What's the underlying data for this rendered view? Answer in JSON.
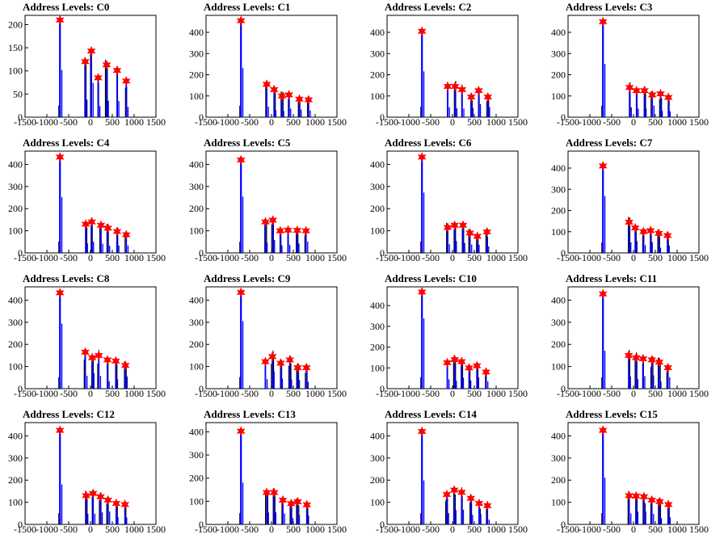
{
  "xlim": [
    -1500,
    1500
  ],
  "x_ticks": [
    -1500,
    -1000,
    -500,
    0,
    500,
    1000,
    1500
  ],
  "colors": {
    "hist": "#0000ff",
    "spike": "#000000",
    "marker": "#ff0000"
  },
  "chart_data": [
    {
      "type": "histogram",
      "title": "Address Levels: C0",
      "ylim": [
        0,
        220
      ],
      "y_ticks": [
        0,
        50,
        100,
        150,
        200
      ],
      "peaks": [
        [
          -700,
          210
        ],
        [
          -120,
          120
        ],
        [
          20,
          143
        ],
        [
          175,
          85
        ],
        [
          370,
          113
        ],
        [
          610,
          101
        ],
        [
          820,
          78
        ]
      ]
    },
    {
      "type": "histogram",
      "title": "Address Levels: C1",
      "ylim": [
        0,
        480
      ],
      "y_ticks": [
        0,
        100,
        200,
        300,
        400
      ],
      "peaks": [
        [
          -700,
          455
        ],
        [
          -110,
          155
        ],
        [
          60,
          130
        ],
        [
          240,
          100
        ],
        [
          400,
          105
        ],
        [
          640,
          85
        ],
        [
          850,
          82
        ]
      ]
    },
    {
      "type": "histogram",
      "title": "Address Levels: C2",
      "ylim": [
        0,
        480
      ],
      "y_ticks": [
        0,
        100,
        200,
        300,
        400
      ],
      "peaks": [
        [
          -700,
          405
        ],
        [
          -110,
          145
        ],
        [
          60,
          145
        ],
        [
          220,
          130
        ],
        [
          430,
          95
        ],
        [
          600,
          125
        ],
        [
          810,
          95
        ]
      ]
    },
    {
      "type": "histogram",
      "title": "Address Levels: C3",
      "ylim": [
        0,
        480
      ],
      "y_ticks": [
        0,
        100,
        200,
        300,
        400
      ],
      "peaks": [
        [
          -700,
          450
        ],
        [
          -90,
          140
        ],
        [
          70,
          125
        ],
        [
          250,
          125
        ],
        [
          430,
          105
        ],
        [
          620,
          110
        ],
        [
          800,
          93
        ]
      ]
    },
    {
      "type": "histogram",
      "title": "Address Levels: C4",
      "ylim": [
        0,
        460
      ],
      "y_ticks": [
        0,
        100,
        200,
        300,
        400
      ],
      "peaks": [
        [
          -700,
          433
        ],
        [
          -110,
          130
        ],
        [
          30,
          140
        ],
        [
          240,
          125
        ],
        [
          400,
          112
        ],
        [
          610,
          97
        ],
        [
          820,
          82
        ]
      ]
    },
    {
      "type": "histogram",
      "title": "Address Levels: C5",
      "ylim": [
        0,
        460
      ],
      "y_ticks": [
        0,
        100,
        200,
        300,
        400
      ],
      "peaks": [
        [
          -700,
          420
        ],
        [
          -140,
          140
        ],
        [
          30,
          148
        ],
        [
          200,
          100
        ],
        [
          380,
          103
        ],
        [
          590,
          102
        ],
        [
          790,
          100
        ]
      ]
    },
    {
      "type": "histogram",
      "title": "Address Levels: C6",
      "ylim": [
        0,
        460
      ],
      "y_ticks": [
        0,
        100,
        200,
        300,
        400
      ],
      "peaks": [
        [
          -700,
          433
        ],
        [
          -110,
          115
        ],
        [
          50,
          125
        ],
        [
          240,
          125
        ],
        [
          400,
          90
        ],
        [
          570,
          75
        ],
        [
          790,
          95
        ]
      ]
    },
    {
      "type": "histogram",
      "title": "Address Levels: C7",
      "ylim": [
        0,
        480
      ],
      "y_ticks": [
        0,
        100,
        200,
        300,
        400
      ],
      "peaks": [
        [
          -700,
          410
        ],
        [
          -100,
          145
        ],
        [
          40,
          118
        ],
        [
          230,
          100
        ],
        [
          390,
          105
        ],
        [
          580,
          92
        ],
        [
          780,
          82
        ]
      ]
    },
    {
      "type": "histogram",
      "title": "Address Levels: C8",
      "ylim": [
        0,
        460
      ],
      "y_ticks": [
        0,
        100,
        200,
        300,
        400
      ],
      "peaks": [
        [
          -700,
          433
        ],
        [
          -120,
          165
        ],
        [
          40,
          140
        ],
        [
          190,
          150
        ],
        [
          390,
          130
        ],
        [
          580,
          125
        ],
        [
          800,
          105
        ]
      ]
    },
    {
      "type": "histogram",
      "title": "Address Levels: C9",
      "ylim": [
        0,
        460
      ],
      "y_ticks": [
        0,
        100,
        200,
        300,
        400
      ],
      "peaks": [
        [
          -700,
          435
        ],
        [
          -140,
          122
        ],
        [
          20,
          145
        ],
        [
          210,
          115
        ],
        [
          420,
          130
        ],
        [
          600,
          95
        ],
        [
          800,
          95
        ]
      ]
    },
    {
      "type": "histogram",
      "title": "Address Levels: C10",
      "ylim": [
        0,
        490
      ],
      "y_ticks": [
        0,
        100,
        200,
        300,
        400
      ],
      "peaks": [
        [
          -700,
          465
        ],
        [
          -120,
          125
        ],
        [
          50,
          140
        ],
        [
          210,
          130
        ],
        [
          380,
          100
        ],
        [
          560,
          110
        ],
        [
          770,
          80
        ]
      ]
    },
    {
      "type": "histogram",
      "title": "Address Levels: C11",
      "ylim": [
        0,
        460
      ],
      "y_ticks": [
        0,
        100,
        200,
        300,
        400
      ],
      "peaks": [
        [
          -700,
          428
        ],
        [
          -110,
          150
        ],
        [
          60,
          140
        ],
        [
          220,
          135
        ],
        [
          420,
          130
        ],
        [
          590,
          120
        ],
        [
          790,
          95
        ]
      ]
    },
    {
      "type": "histogram",
      "title": "Address Levels: C12",
      "ylim": [
        0,
        460
      ],
      "y_ticks": [
        0,
        100,
        200,
        300,
        400
      ],
      "peaks": [
        [
          -700,
          425
        ],
        [
          -100,
          130
        ],
        [
          60,
          140
        ],
        [
          230,
          125
        ],
        [
          400,
          110
        ],
        [
          590,
          95
        ],
        [
          790,
          90
        ]
      ]
    },
    {
      "type": "histogram",
      "title": "Address Levels: C13",
      "ylim": [
        0,
        440
      ],
      "y_ticks": [
        0,
        100,
        200,
        300,
        400
      ],
      "peaks": [
        [
          -700,
          403
        ],
        [
          -110,
          138
        ],
        [
          60,
          138
        ],
        [
          260,
          105
        ],
        [
          450,
          90
        ],
        [
          600,
          98
        ],
        [
          810,
          85
        ]
      ]
    },
    {
      "type": "histogram",
      "title": "Address Levels: C14",
      "ylim": [
        0,
        460
      ],
      "y_ticks": [
        0,
        100,
        200,
        300,
        400
      ],
      "peaks": [
        [
          -700,
          420
        ],
        [
          -130,
          135
        ],
        [
          40,
          155
        ],
        [
          210,
          145
        ],
        [
          420,
          118
        ],
        [
          610,
          95
        ],
        [
          800,
          85
        ]
      ]
    },
    {
      "type": "histogram",
      "title": "Address Levels: C15",
      "ylim": [
        0,
        460
      ],
      "y_ticks": [
        0,
        100,
        200,
        300,
        400
      ],
      "peaks": [
        [
          -700,
          425
        ],
        [
          -100,
          130
        ],
        [
          60,
          128
        ],
        [
          240,
          125
        ],
        [
          420,
          110
        ],
        [
          600,
          103
        ],
        [
          800,
          90
        ]
      ]
    }
  ]
}
